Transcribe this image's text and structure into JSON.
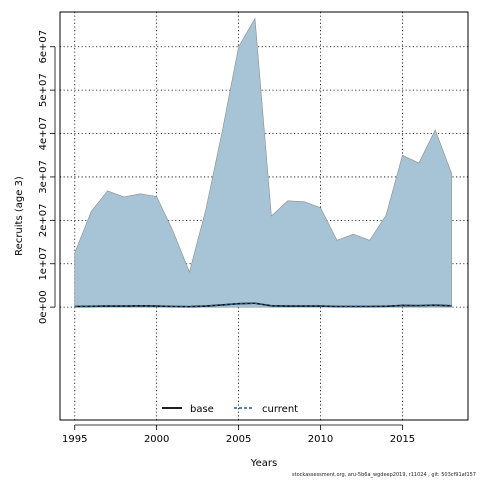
{
  "footer": "stockassessment.org, aru-5b6a_wgdeep2019, r11024 , git: 503cf91af157",
  "chart_data": {
    "type": "area",
    "xlabel": "Years",
    "ylabel": "Recruits (age 3)",
    "xlim": [
      1994.1,
      2019
    ],
    "ylim": [
      -26000000.0,
      68000000.0
    ],
    "xticks": [
      1995,
      2000,
      2005,
      2010,
      2015
    ],
    "xtick_labels": [
      "1995",
      "2000",
      "2005",
      "2010",
      "2015"
    ],
    "yticks": [
      0,
      10000000.0,
      20000000.0,
      30000000.0,
      40000000.0,
      50000000.0,
      60000000.0
    ],
    "ytick_labels": [
      "0e+00",
      "1e+07",
      "2e+07",
      "3e+07",
      "4e+07",
      "5e+07",
      "6e+07"
    ],
    "grid": true,
    "legend_position": "bottom-center",
    "band_color": "#a6c4d6",
    "band_edge_color": "#8c8c8c",
    "x": [
      1995,
      1996,
      1997,
      1998,
      1999,
      2000,
      2001,
      2002,
      2003,
      2004,
      2005,
      2006,
      2007,
      2008,
      2009,
      2010,
      2011,
      2012,
      2013,
      2014,
      2015,
      2016,
      2017,
      2018
    ],
    "band_upper": [
      12500000,
      22000000,
      26800000,
      25400000,
      26100000,
      25500000,
      17500000,
      8100000,
      22500000,
      40500000,
      60000000,
      66500000,
      21000000,
      24500000,
      24300000,
      22900000,
      15400000,
      16800000,
      15400000,
      21200000,
      35000000,
      33200000,
      40800000,
      30800000
    ],
    "band_lower": [
      0,
      0,
      0,
      0,
      0,
      0,
      0,
      0,
      0,
      0,
      0,
      0,
      0,
      0,
      0,
      0,
      0,
      0,
      0,
      0,
      0,
      0,
      0,
      0
    ],
    "series": [
      {
        "name": "base",
        "color": "#000000",
        "dash": "solid",
        "values": [
          150000,
          200000,
          250000,
          250000,
          300000,
          250000,
          150000,
          100000,
          250000,
          500000,
          800000,
          900000,
          300000,
          250000,
          250000,
          250000,
          150000,
          150000,
          150000,
          200000,
          400000,
          350000,
          450000,
          300000
        ]
      },
      {
        "name": "current",
        "color": "#1f5f8b",
        "dash": "dashed",
        "values": [
          150000,
          200000,
          250000,
          250000,
          300000,
          250000,
          150000,
          100000,
          250000,
          500000,
          800000,
          900000,
          300000,
          250000,
          250000,
          250000,
          150000,
          150000,
          150000,
          200000,
          400000,
          350000,
          450000,
          300000
        ]
      }
    ]
  }
}
